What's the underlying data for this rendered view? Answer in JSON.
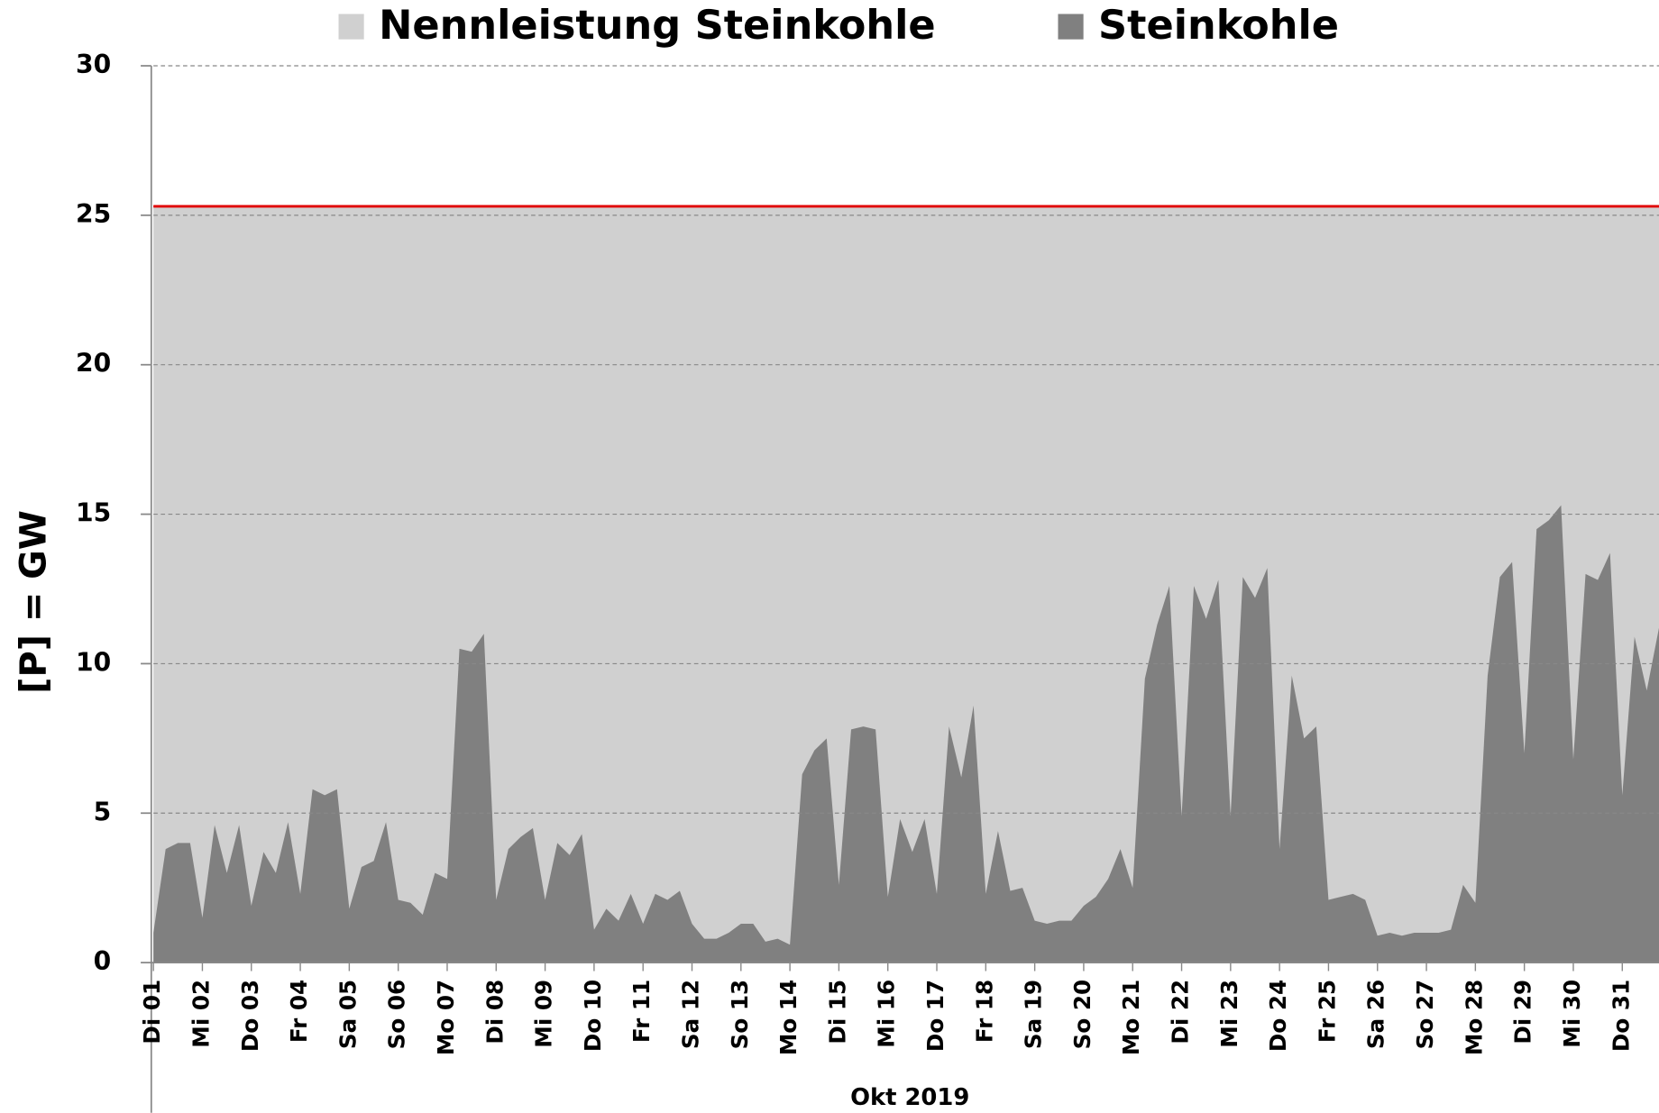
{
  "chart_data": {
    "type": "area",
    "legend_position": "top",
    "y_label": "[P]  =  GW",
    "x_label": "Okt 2019",
    "xlim": [
      1,
      31.75
    ],
    "ylim": [
      0,
      30
    ],
    "yticks": [
      0,
      5,
      10,
      15,
      20,
      25,
      30
    ],
    "grid": true,
    "xticks": [
      {
        "value": 1,
        "label": "Di 01"
      },
      {
        "value": 2,
        "label": "Mi 02"
      },
      {
        "value": 3,
        "label": "Do 03"
      },
      {
        "value": 4,
        "label": "Fr 04"
      },
      {
        "value": 5,
        "label": "Sa 05"
      },
      {
        "value": 6,
        "label": "So 06"
      },
      {
        "value": 7,
        "label": "Mo 07"
      },
      {
        "value": 8,
        "label": "Di 08"
      },
      {
        "value": 9,
        "label": "Mi 09"
      },
      {
        "value": 10,
        "label": "Do 10"
      },
      {
        "value": 11,
        "label": "Fr 11"
      },
      {
        "value": 12,
        "label": "Sa 12"
      },
      {
        "value": 13,
        "label": "So 13"
      },
      {
        "value": 14,
        "label": "Mo 14"
      },
      {
        "value": 15,
        "label": "Di 15"
      },
      {
        "value": 16,
        "label": "Mi 16"
      },
      {
        "value": 17,
        "label": "Do 17"
      },
      {
        "value": 18,
        "label": "Fr 18"
      },
      {
        "value": 19,
        "label": "Sa 19"
      },
      {
        "value": 20,
        "label": "So 20"
      },
      {
        "value": 21,
        "label": "Mo 21"
      },
      {
        "value": 22,
        "label": "Di 22"
      },
      {
        "value": 23,
        "label": "Mi 23"
      },
      {
        "value": 24,
        "label": "Do 24"
      },
      {
        "value": 25,
        "label": "Fr 25"
      },
      {
        "value": 26,
        "label": "Sa 26"
      },
      {
        "value": 27,
        "label": "So 27"
      },
      {
        "value": 28,
        "label": "Mo 28"
      },
      {
        "value": 29,
        "label": "Di 29"
      },
      {
        "value": 30,
        "label": "Mi 30"
      },
      {
        "value": 31,
        "label": "Do 31"
      }
    ],
    "series": [
      {
        "name": "Nennleistung Steinkohle",
        "color": "#d0d0d0",
        "line_color": "#e00000",
        "x": [
          1,
          31.75
        ],
        "values": [
          25.3,
          25.3
        ]
      },
      {
        "name": "Steinkohle",
        "color": "#808080",
        "x": [
          1,
          1.25,
          1.5,
          1.75,
          2,
          2.25,
          2.5,
          2.75,
          3,
          3.25,
          3.5,
          3.75,
          4,
          4.25,
          4.5,
          4.75,
          5,
          5.25,
          5.5,
          5.75,
          6,
          6.25,
          6.5,
          6.75,
          7,
          7.25,
          7.5,
          7.75,
          8,
          8.25,
          8.5,
          8.75,
          9,
          9.25,
          9.5,
          9.75,
          10,
          10.25,
          10.5,
          10.75,
          11,
          11.25,
          11.5,
          11.75,
          12,
          12.25,
          12.5,
          12.75,
          13,
          13.25,
          13.5,
          13.75,
          14,
          14.25,
          14.5,
          14.75,
          15,
          15.25,
          15.5,
          15.75,
          16,
          16.25,
          16.5,
          16.75,
          17,
          17.25,
          17.5,
          17.75,
          18,
          18.25,
          18.5,
          18.75,
          19,
          19.25,
          19.5,
          19.75,
          20,
          20.25,
          20.5,
          20.75,
          21,
          21.25,
          21.5,
          21.75,
          22,
          22.25,
          22.5,
          22.75,
          23,
          23.25,
          23.5,
          23.75,
          24,
          24.25,
          24.5,
          24.75,
          25,
          25.25,
          25.5,
          25.75,
          26,
          26.25,
          26.5,
          26.75,
          27,
          27.25,
          27.5,
          27.75,
          28,
          28.25,
          28.5,
          28.75,
          29,
          29.25,
          29.5,
          29.75,
          30,
          30.25,
          30.5,
          30.75,
          31,
          31.25,
          31.5,
          31.75
        ],
        "values": [
          1.0,
          3.8,
          4.0,
          4.0,
          1.5,
          4.6,
          3.0,
          4.6,
          1.9,
          3.7,
          3.0,
          4.7,
          2.3,
          5.8,
          5.6,
          5.8,
          1.8,
          3.2,
          3.4,
          4.7,
          2.1,
          2.0,
          1.6,
          3.0,
          2.8,
          10.5,
          10.4,
          11.0,
          2.1,
          3.8,
          4.2,
          4.5,
          2.1,
          4.0,
          3.6,
          4.3,
          1.1,
          1.8,
          1.4,
          2.3,
          1.3,
          2.3,
          2.1,
          2.4,
          1.3,
          0.8,
          0.8,
          1.0,
          1.3,
          1.3,
          0.7,
          0.8,
          0.6,
          6.3,
          7.1,
          7.5,
          2.6,
          7.8,
          7.9,
          7.8,
          2.2,
          4.8,
          3.7,
          4.8,
          2.3,
          7.9,
          6.2,
          8.6,
          2.3,
          4.4,
          2.4,
          2.5,
          1.4,
          1.3,
          1.4,
          1.4,
          1.9,
          2.2,
          2.8,
          3.8,
          2.5,
          9.5,
          11.3,
          12.6,
          4.9,
          12.6,
          11.5,
          12.8,
          4.9,
          12.9,
          12.2,
          13.2,
          3.8,
          9.6,
          7.5,
          7.9,
          2.1,
          2.2,
          2.3,
          2.1,
          0.9,
          1.0,
          0.9,
          1.0,
          1.0,
          1.0,
          1.1,
          2.6,
          2.0,
          9.6,
          12.9,
          13.4,
          7.0,
          14.5,
          14.8,
          15.3,
          6.8,
          13.0,
          12.8,
          13.7,
          5.6,
          10.9,
          9.1,
          11.2
        ]
      }
    ]
  }
}
